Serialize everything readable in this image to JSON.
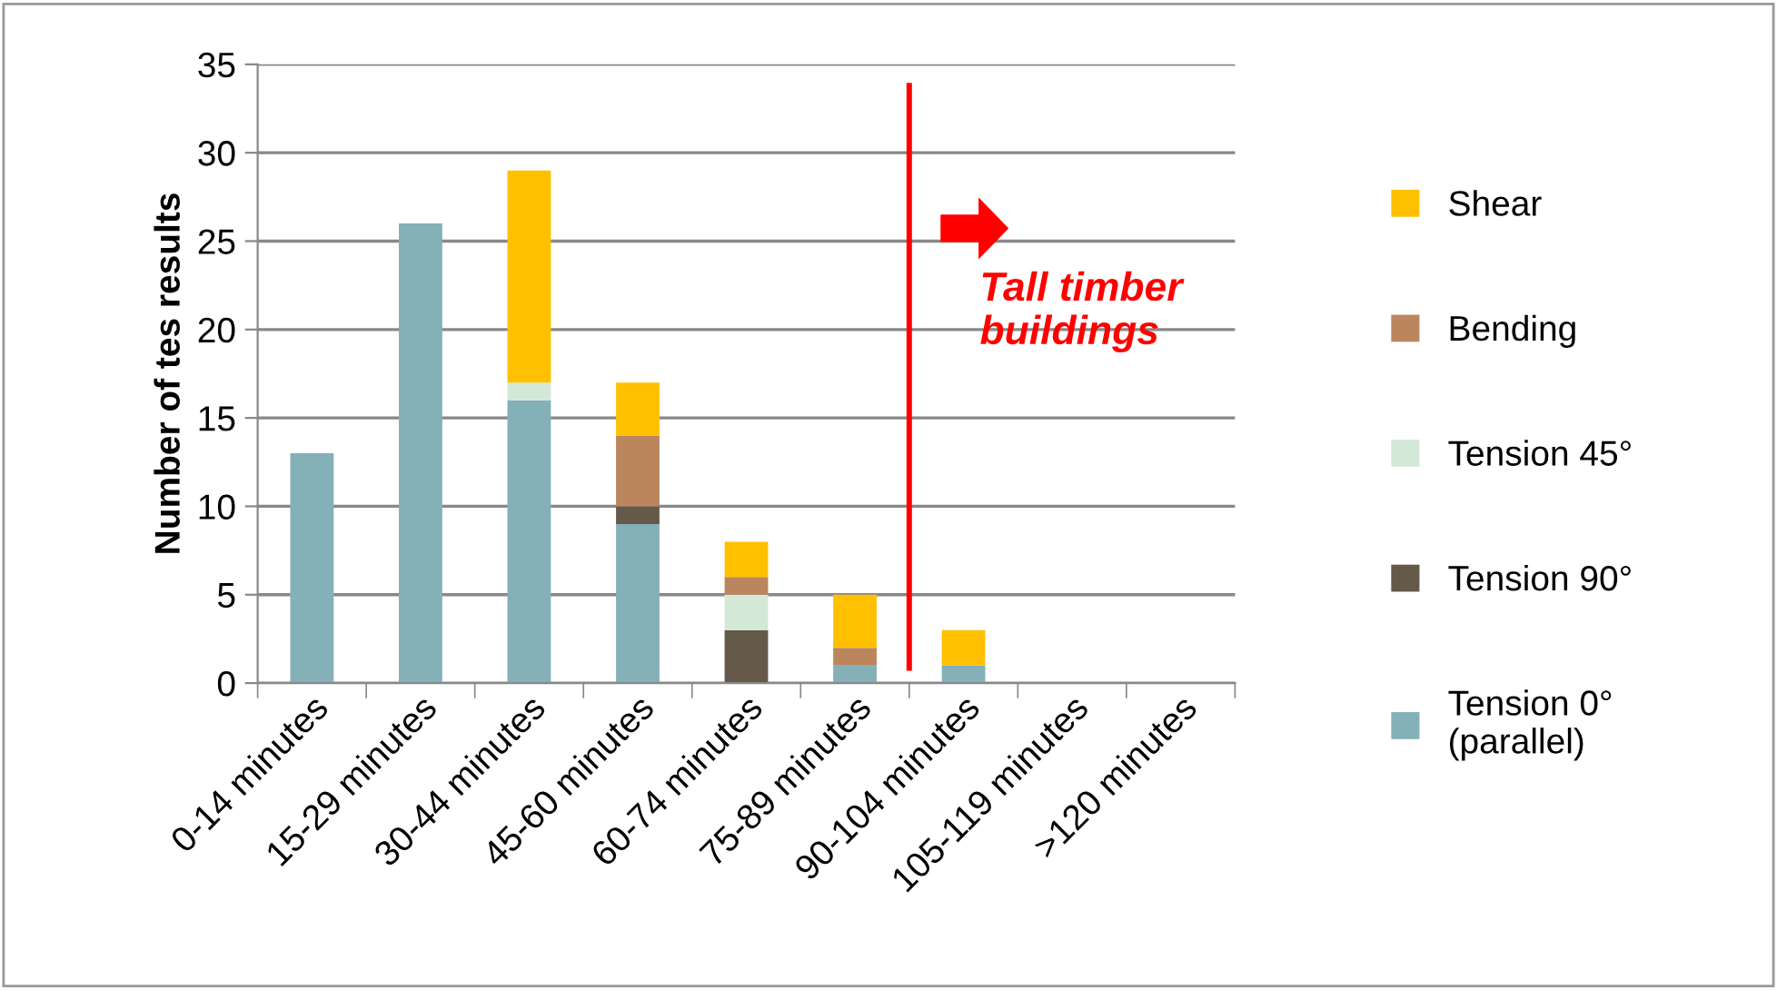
{
  "chart_data": {
    "type": "bar",
    "stacked": true,
    "ylabel": "Number of tes results",
    "categories": [
      "0-14 minutes",
      "15-29 minutes",
      "30-44 minutes",
      "45-60 minutes",
      "60-74 minutes",
      "75-89 minutes",
      "90-104 minutes",
      "105-119 minutes",
      ">120 minutes"
    ],
    "series": [
      {
        "name": "Tension 0°\n(parallel)",
        "color": "#84b0b8",
        "values": [
          13,
          26,
          16,
          9,
          0,
          1,
          1,
          0,
          0
        ]
      },
      {
        "name": "Tension 90°",
        "color": "#65594a",
        "values": [
          0,
          0,
          0,
          1,
          3,
          0,
          0,
          0,
          0
        ]
      },
      {
        "name": "Tension 45°",
        "color": "#d4e8d7",
        "values": [
          0,
          0,
          1,
          0,
          2,
          0,
          0,
          0,
          0
        ]
      },
      {
        "name": "Bending",
        "color": "#bb855e",
        "values": [
          0,
          0,
          0,
          4,
          1,
          1,
          0,
          0,
          0
        ]
      },
      {
        "name": "Shear",
        "color": "#ffc000",
        "values": [
          0,
          0,
          12,
          3,
          2,
          3,
          2,
          0,
          0
        ]
      }
    ],
    "ylim": [
      0,
      35
    ],
    "yticks": [
      0,
      5,
      10,
      15,
      20,
      25,
      30,
      35
    ],
    "grid": "y",
    "legend": "right",
    "annotations": [
      "Tall timber\nbuildings"
    ]
  }
}
